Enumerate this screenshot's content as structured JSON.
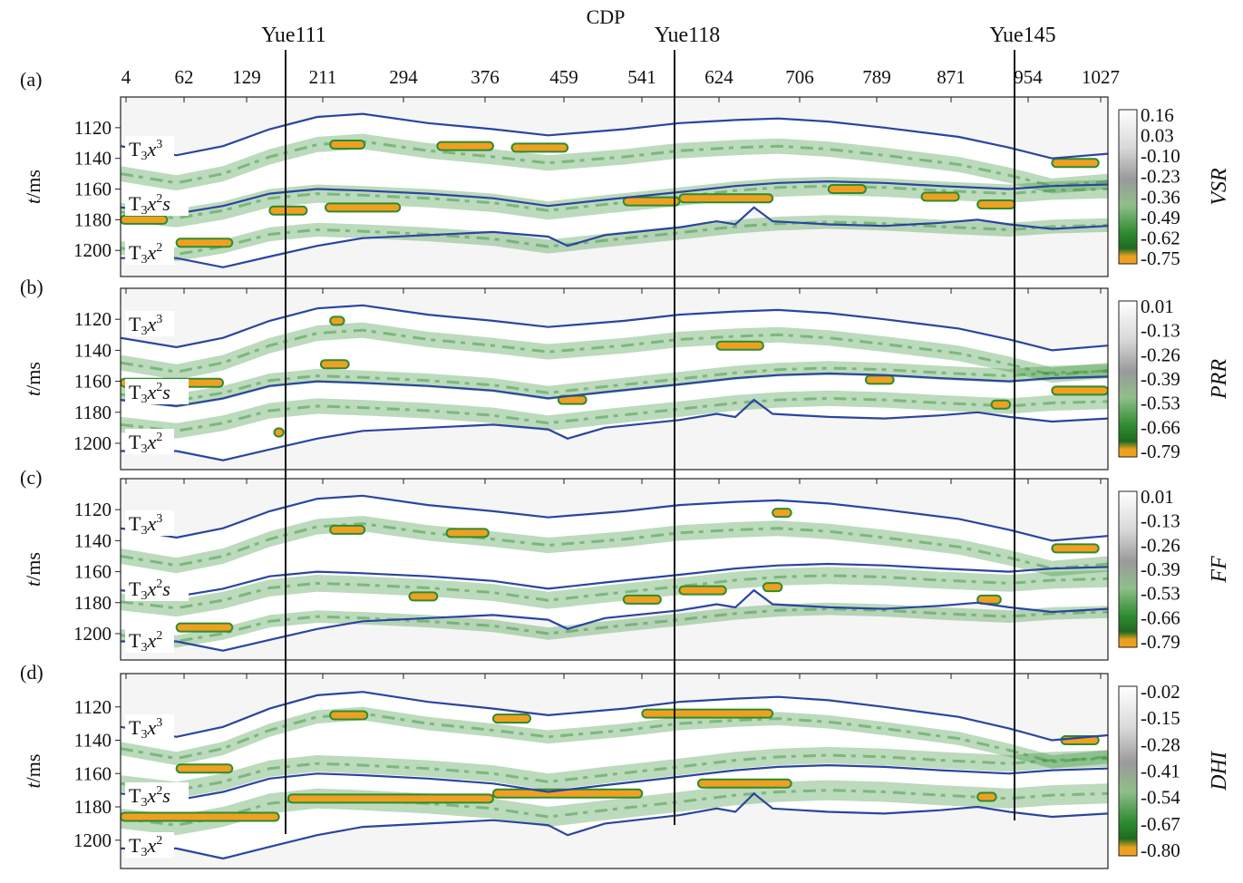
{
  "colors": {
    "horizon": "#2a45a0",
    "well_line": "#111111",
    "anomaly_orange": "#f0a020",
    "anomaly_green": "#2e8b30",
    "background": "#f5f5f5"
  },
  "figure": {
    "x_title": "CDP",
    "y_label_unit": "/ms",
    "y_label_var": "t",
    "x_ticks": [
      "4",
      "62",
      "129",
      "211",
      "294",
      "376",
      "459",
      "541",
      "624",
      "706",
      "789",
      "871",
      "954",
      "1027"
    ],
    "y_ticks": [
      "1120",
      "1140",
      "1160",
      "1180",
      "1200"
    ],
    "wells": [
      {
        "name": "Yue111",
        "cdp": 161
      },
      {
        "name": "Yue118",
        "cdp": 582
      },
      {
        "name": "Yue145",
        "cdp": 946
      }
    ]
  },
  "chart_data": [
    {
      "type": "heatmap",
      "panel_label": "(a)",
      "attribute": "VSR",
      "x_range": [
        0,
        1060
      ],
      "y_range": [
        1100,
        1217
      ],
      "colorbar_ticks": [
        "0.16",
        "0.03",
        "-0.10",
        "-0.23",
        "-0.36",
        "-0.49",
        "-0.62",
        "-0.75"
      ],
      "colorbar_range": [
        -0.75,
        0.16
      ],
      "formation_labels": [
        {
          "base": "T",
          "sub": "3",
          "main": "x",
          "sup": "3",
          "suffix": ""
        },
        {
          "base": "T",
          "sub": "3",
          "main": "x",
          "sup": "2",
          "suffix": "s"
        },
        {
          "base": "T",
          "sub": "3",
          "main": "x",
          "sup": "2",
          "suffix": ""
        }
      ],
      "bands": [
        {
          "y0": 1138,
          "y1": 1148
        },
        {
          "y0": 1160,
          "y1": 1172
        },
        {
          "y0": 1185,
          "y1": 1194
        }
      ],
      "anomalies": [
        {
          "cdp0": 225,
          "cdp1": 262,
          "t": 1131
        },
        {
          "cdp0": 340,
          "cdp1": 400,
          "t": 1132
        },
        {
          "cdp0": 420,
          "cdp1": 480,
          "t": 1133
        },
        {
          "cdp0": 160,
          "cdp1": 200,
          "t": 1174
        },
        {
          "cdp0": 220,
          "cdp1": 300,
          "t": 1172
        },
        {
          "cdp0": 540,
          "cdp1": 600,
          "t": 1168
        },
        {
          "cdp0": 600,
          "cdp1": 700,
          "t": 1166
        },
        {
          "cdp0": 760,
          "cdp1": 800,
          "t": 1160
        },
        {
          "cdp0": 860,
          "cdp1": 900,
          "t": 1165
        },
        {
          "cdp0": 920,
          "cdp1": 960,
          "t": 1170
        },
        {
          "cdp0": 1000,
          "cdp1": 1050,
          "t": 1143
        },
        {
          "cdp0": 60,
          "cdp1": 120,
          "t": 1195
        },
        {
          "cdp0": 0,
          "cdp1": 50,
          "t": 1180
        }
      ]
    },
    {
      "type": "heatmap",
      "panel_label": "(b)",
      "attribute": "PRR",
      "x_range": [
        0,
        1060
      ],
      "y_range": [
        1100,
        1217
      ],
      "colorbar_ticks": [
        "0.01",
        "-0.13",
        "-0.26",
        "-0.39",
        "-0.53",
        "-0.66",
        "-0.79"
      ],
      "colorbar_range": [
        -0.79,
        0.01
      ],
      "formation_labels": [
        {
          "base": "T",
          "sub": "3",
          "main": "x",
          "sup": "3",
          "suffix": ""
        },
        {
          "base": "T",
          "sub": "3",
          "main": "x",
          "sup": "2",
          "suffix": "s"
        },
        {
          "base": "T",
          "sub": "3",
          "main": "x",
          "sup": "2",
          "suffix": ""
        }
      ],
      "bands": [
        {
          "y0": 1136,
          "y1": 1146
        },
        {
          "y0": 1155,
          "y1": 1164
        },
        {
          "y0": 1174,
          "y1": 1184
        }
      ],
      "anomalies": [
        {
          "cdp0": 0,
          "cdp1": 110,
          "t": 1161
        },
        {
          "cdp0": 225,
          "cdp1": 240,
          "t": 1121
        },
        {
          "cdp0": 215,
          "cdp1": 245,
          "t": 1149
        },
        {
          "cdp0": 470,
          "cdp1": 500,
          "t": 1172
        },
        {
          "cdp0": 640,
          "cdp1": 690,
          "t": 1137
        },
        {
          "cdp0": 800,
          "cdp1": 830,
          "t": 1159
        },
        {
          "cdp0": 935,
          "cdp1": 955,
          "t": 1175
        },
        {
          "cdp0": 1000,
          "cdp1": 1060,
          "t": 1166
        },
        {
          "cdp0": 165,
          "cdp1": 175,
          "t": 1193
        }
      ]
    },
    {
      "type": "heatmap",
      "panel_label": "(c)",
      "attribute": "FF",
      "x_range": [
        0,
        1060
      ],
      "y_range": [
        1100,
        1217
      ],
      "colorbar_ticks": [
        "0.01",
        "-0.13",
        "-0.26",
        "-0.39",
        "-0.53",
        "-0.66",
        "-0.79"
      ],
      "colorbar_range": [
        -0.79,
        0.01
      ],
      "formation_labels": [
        {
          "base": "T",
          "sub": "3",
          "main": "x",
          "sup": "3",
          "suffix": ""
        },
        {
          "base": "T",
          "sub": "3",
          "main": "x",
          "sup": "2",
          "suffix": "s"
        },
        {
          "base": "T",
          "sub": "3",
          "main": "x",
          "sup": "2",
          "suffix": ""
        }
      ],
      "bands": [
        {
          "y0": 1138,
          "y1": 1148
        },
        {
          "y0": 1165,
          "y1": 1176
        },
        {
          "y0": 1188,
          "y1": 1196
        }
      ],
      "anomalies": [
        {
          "cdp0": 225,
          "cdp1": 262,
          "t": 1133
        },
        {
          "cdp0": 350,
          "cdp1": 395,
          "t": 1135
        },
        {
          "cdp0": 310,
          "cdp1": 340,
          "t": 1176
        },
        {
          "cdp0": 540,
          "cdp1": 580,
          "t": 1178
        },
        {
          "cdp0": 600,
          "cdp1": 650,
          "t": 1172
        },
        {
          "cdp0": 690,
          "cdp1": 710,
          "t": 1170
        },
        {
          "cdp0": 920,
          "cdp1": 945,
          "t": 1178
        },
        {
          "cdp0": 1000,
          "cdp1": 1050,
          "t": 1145
        },
        {
          "cdp0": 60,
          "cdp1": 120,
          "t": 1196
        },
        {
          "cdp0": 700,
          "cdp1": 720,
          "t": 1122
        }
      ]
    },
    {
      "type": "heatmap",
      "panel_label": "(d)",
      "attribute": "DHI",
      "x_range": [
        0,
        1060
      ],
      "y_range": [
        1100,
        1217
      ],
      "colorbar_ticks": [
        "-0.02",
        "-0.15",
        "-0.28",
        "-0.41",
        "-0.54",
        "-0.67",
        "-0.80"
      ],
      "colorbar_range": [
        -0.8,
        -0.02
      ],
      "formation_labels": [
        {
          "base": "T",
          "sub": "3",
          "main": "x",
          "sup": "3",
          "suffix": ""
        },
        {
          "base": "T",
          "sub": "3",
          "main": "x",
          "sup": "2",
          "suffix": "s"
        },
        {
          "base": "T",
          "sub": "3",
          "main": "x",
          "sup": "2",
          "suffix": ""
        }
      ],
      "bands": [
        {
          "y0": 1134,
          "y1": 1142
        },
        {
          "y0": 1152,
          "y1": 1162
        },
        {
          "y0": 1172,
          "y1": 1184
        }
      ],
      "anomalies": [
        {
          "cdp0": 225,
          "cdp1": 265,
          "t": 1125
        },
        {
          "cdp0": 400,
          "cdp1": 440,
          "t": 1127
        },
        {
          "cdp0": 560,
          "cdp1": 700,
          "t": 1124
        },
        {
          "cdp0": 0,
          "cdp1": 170,
          "t": 1186
        },
        {
          "cdp0": 180,
          "cdp1": 400,
          "t": 1175
        },
        {
          "cdp0": 400,
          "cdp1": 560,
          "t": 1172
        },
        {
          "cdp0": 620,
          "cdp1": 720,
          "t": 1166
        },
        {
          "cdp0": 60,
          "cdp1": 120,
          "t": 1157
        },
        {
          "cdp0": 1010,
          "cdp1": 1050,
          "t": 1140
        },
        {
          "cdp0": 920,
          "cdp1": 940,
          "t": 1174
        }
      ]
    }
  ],
  "horizons": {
    "top": [
      [
        0,
        1132
      ],
      [
        60,
        1138
      ],
      [
        110,
        1132
      ],
      [
        160,
        1121
      ],
      [
        211,
        1113
      ],
      [
        260,
        1111
      ],
      [
        330,
        1117
      ],
      [
        400,
        1121
      ],
      [
        459,
        1125
      ],
      [
        541,
        1121
      ],
      [
        600,
        1117
      ],
      [
        660,
        1115
      ],
      [
        706,
        1114
      ],
      [
        760,
        1116
      ],
      [
        820,
        1120
      ],
      [
        900,
        1126
      ],
      [
        954,
        1133
      ],
      [
        1000,
        1140
      ],
      [
        1060,
        1137
      ]
    ],
    "mid": [
      [
        0,
        1172
      ],
      [
        60,
        1176
      ],
      [
        110,
        1171
      ],
      [
        160,
        1163
      ],
      [
        211,
        1160
      ],
      [
        260,
        1161
      ],
      [
        330,
        1163
      ],
      [
        400,
        1166
      ],
      [
        459,
        1171
      ],
      [
        520,
        1167
      ],
      [
        600,
        1162
      ],
      [
        660,
        1158
      ],
      [
        706,
        1156
      ],
      [
        760,
        1155
      ],
      [
        820,
        1156
      ],
      [
        880,
        1158
      ],
      [
        954,
        1160
      ],
      [
        1000,
        1158
      ],
      [
        1060,
        1157
      ]
    ],
    "bot": [
      [
        0,
        1205
      ],
      [
        60,
        1205
      ],
      [
        110,
        1211
      ],
      [
        160,
        1204
      ],
      [
        211,
        1197
      ],
      [
        260,
        1192
      ],
      [
        330,
        1190
      ],
      [
        400,
        1188
      ],
      [
        459,
        1191
      ],
      [
        480,
        1197
      ],
      [
        520,
        1190
      ],
      [
        600,
        1185
      ],
      [
        640,
        1181
      ],
      [
        660,
        1183
      ],
      [
        680,
        1172
      ],
      [
        700,
        1181
      ],
      [
        760,
        1183
      ],
      [
        820,
        1184
      ],
      [
        880,
        1182
      ],
      [
        920,
        1180
      ],
      [
        954,
        1183
      ],
      [
        1000,
        1186
      ],
      [
        1060,
        1184
      ]
    ]
  }
}
